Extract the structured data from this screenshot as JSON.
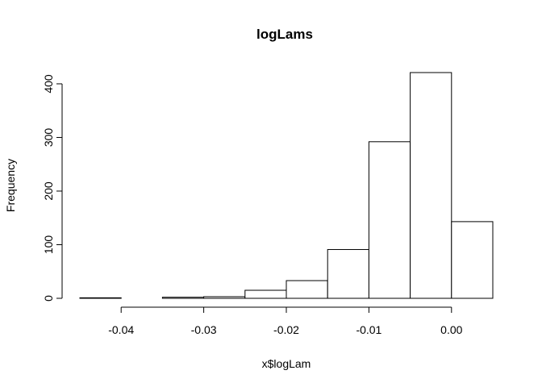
{
  "chart_data": {
    "type": "bar",
    "title": "logLams",
    "xlabel": "x$logLam",
    "ylabel": "Frequency",
    "bins": [
      {
        "start": -0.045,
        "end": -0.04,
        "count": 1
      },
      {
        "start": -0.04,
        "end": -0.035,
        "count": 0
      },
      {
        "start": -0.035,
        "end": -0.03,
        "count": 2
      },
      {
        "start": -0.03,
        "end": -0.025,
        "count": 3
      },
      {
        "start": -0.025,
        "end": -0.02,
        "count": 15
      },
      {
        "start": -0.02,
        "end": -0.015,
        "count": 33
      },
      {
        "start": -0.015,
        "end": -0.01,
        "count": 91
      },
      {
        "start": -0.01,
        "end": -0.005,
        "count": 292
      },
      {
        "start": -0.005,
        "end": 0.0,
        "count": 421
      },
      {
        "start": 0.0,
        "end": 0.005,
        "count": 143
      }
    ],
    "x_ticks": [
      -0.04,
      -0.03,
      -0.02,
      -0.01,
      0.0
    ],
    "x_tick_labels": [
      "-0.04",
      "-0.03",
      "-0.02",
      "-0.01",
      "0.00"
    ],
    "y_ticks": [
      0,
      100,
      200,
      300,
      400
    ],
    "y_tick_labels": [
      "0",
      "100",
      "200",
      "300",
      "400"
    ],
    "xlim": [
      -0.045,
      0.005
    ],
    "ylim": [
      0,
      421
    ],
    "grid": false,
    "legend": "none",
    "colors": {
      "bar_fill": "#ffffff",
      "bar_stroke": "#000000"
    }
  }
}
